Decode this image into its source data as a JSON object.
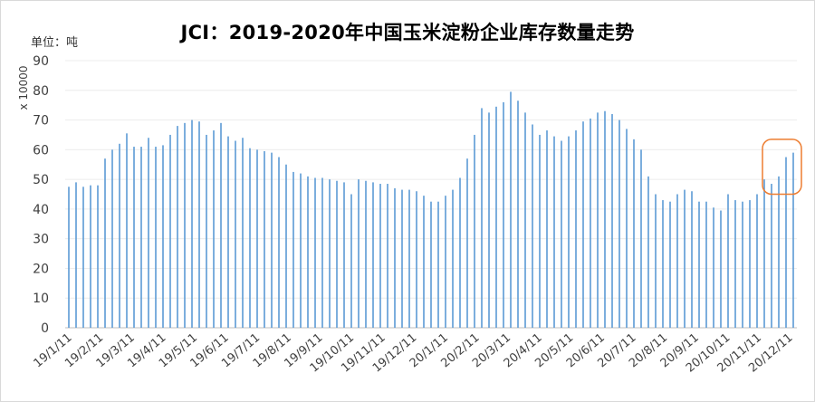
{
  "chart_data": {
    "type": "bar",
    "title": "JCI：2019-2020年中国玉米淀粉企业库存数量走势",
    "unit": "单位：吨",
    "ylabel": "x 10000",
    "ylim": [
      0,
      90
    ],
    "yticks": [
      0,
      10,
      20,
      30,
      40,
      50,
      60,
      70,
      80,
      90
    ],
    "grid": true,
    "bar_color": "#5b9bd5",
    "highlight_color": "#ed7d31",
    "x_tick_labels": [
      "19/1/11",
      "19/2/11",
      "19/3/11",
      "19/4/11",
      "19/5/11",
      "19/6/11",
      "19/7/11",
      "19/8/11",
      "19/9/11",
      "19/10/11",
      "19/11/11",
      "19/12/11",
      "20/1/11",
      "20/2/11",
      "20/3/11",
      "20/4/11",
      "20/5/11",
      "20/6/11",
      "20/7/11",
      "20/8/11",
      "20/9/11",
      "20/10/11",
      "20/11/11",
      "20/12/11"
    ],
    "values": [
      47.5,
      49,
      47.5,
      48,
      48,
      57,
      60,
      62,
      65.5,
      61,
      61,
      64,
      61,
      61.5,
      65,
      68,
      69,
      70,
      69.5,
      65,
      66.5,
      69,
      64.5,
      63,
      64,
      60.5,
      60,
      59.5,
      59,
      57.5,
      55,
      52.5,
      52,
      51,
      50.5,
      50.5,
      50,
      49.5,
      49,
      45,
      50,
      49.5,
      49,
      48.5,
      48.5,
      47,
      46.5,
      46.5,
      46,
      44.5,
      42.5,
      42.5,
      44.5,
      46.5,
      50.5,
      57,
      65,
      74,
      72.5,
      74.5,
      76,
      79.5,
      76.5,
      72.5,
      68.5,
      65,
      66.5,
      64.5,
      63,
      64.5,
      66.5,
      69.5,
      70.5,
      72.5,
      73,
      72,
      70,
      67,
      63.5,
      60,
      51,
      45,
      43,
      42.5,
      45,
      46.5,
      46,
      42.5,
      42.5,
      40.5,
      39.5,
      45,
      43,
      42.5,
      43,
      45,
      50,
      48.5,
      51,
      57.5,
      59
    ]
  }
}
